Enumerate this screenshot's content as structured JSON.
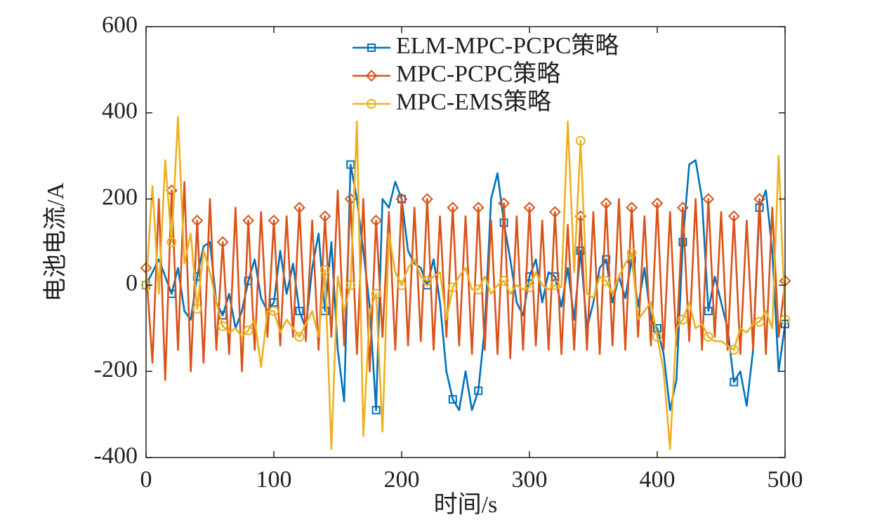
{
  "chart_data": {
    "type": "line",
    "xlabel": "时间/s",
    "ylabel": "电池电流/A",
    "xlim": [
      0,
      500
    ],
    "ylim": [
      -400,
      600
    ],
    "xticks": [
      0,
      100,
      200,
      300,
      400,
      500
    ],
    "yticks": [
      -400,
      -200,
      0,
      200,
      400,
      600
    ],
    "x": [
      0,
      5,
      10,
      15,
      20,
      25,
      30,
      35,
      40,
      45,
      50,
      55,
      60,
      65,
      70,
      75,
      80,
      85,
      90,
      95,
      100,
      105,
      110,
      115,
      120,
      125,
      130,
      135,
      140,
      145,
      150,
      155,
      160,
      165,
      170,
      175,
      180,
      185,
      190,
      195,
      200,
      205,
      210,
      215,
      220,
      225,
      230,
      235,
      240,
      245,
      250,
      255,
      260,
      265,
      270,
      275,
      280,
      285,
      290,
      295,
      300,
      305,
      310,
      315,
      320,
      325,
      330,
      335,
      340,
      345,
      350,
      355,
      360,
      365,
      370,
      375,
      380,
      385,
      390,
      395,
      400,
      405,
      410,
      415,
      420,
      425,
      430,
      435,
      440,
      445,
      450,
      455,
      460,
      465,
      470,
      475,
      480,
      485,
      490,
      495,
      500
    ],
    "series": [
      {
        "name": "ELM-MPC-PCPC策略",
        "color": "#0072bd",
        "marker": "square",
        "values": [
          0,
          30,
          60,
          20,
          -20,
          40,
          -60,
          -80,
          20,
          90,
          100,
          -40,
          -70,
          -20,
          -100,
          -60,
          10,
          60,
          -30,
          -60,
          -40,
          80,
          -20,
          50,
          -60,
          -100,
          40,
          120,
          -60,
          100,
          -150,
          -270,
          280,
          200,
          80,
          -50,
          -290,
          200,
          180,
          240,
          200,
          80,
          50,
          40,
          0,
          60,
          -40,
          -200,
          -265,
          -290,
          -200,
          -290,
          -245,
          -100,
          200,
          260,
          145,
          60,
          -40,
          -70,
          20,
          60,
          -40,
          30,
          20,
          -50,
          40,
          -80,
          80,
          -100,
          -40,
          40,
          60,
          -40,
          20,
          -30,
          60,
          -50,
          40,
          -80,
          -100,
          -160,
          -290,
          -220,
          100,
          280,
          290,
          200,
          -60,
          20,
          -40,
          -100,
          -225,
          -200,
          -280,
          -150,
          180,
          220,
          80,
          -200,
          -90
        ]
      },
      {
        "name": "MPC-PCPC策略",
        "color": "#d95319",
        "marker": "diamond",
        "values": [
          40,
          -180,
          200,
          -220,
          220,
          -150,
          240,
          -200,
          150,
          -180,
          200,
          -150,
          100,
          -160,
          180,
          -200,
          150,
          -150,
          170,
          -120,
          150,
          -140,
          160,
          -120,
          180,
          -130,
          150,
          -150,
          160,
          -120,
          220,
          -140,
          200,
          -160,
          200,
          -200,
          150,
          -120,
          170,
          -150,
          200,
          -140,
          180,
          -130,
          200,
          -150,
          160,
          -120,
          180,
          -140,
          160,
          -160,
          180,
          -150,
          150,
          -160,
          190,
          -170,
          160,
          -150,
          180,
          -140,
          150,
          -150,
          170,
          -160,
          140,
          -150,
          160,
          -150,
          170,
          -160,
          190,
          -140,
          200,
          -150,
          180,
          -120,
          160,
          -140,
          190,
          -150,
          170,
          -140,
          180,
          -130,
          200,
          -150,
          200,
          -120,
          170,
          -150,
          160,
          -160,
          150,
          -150,
          200,
          -160,
          180,
          -120,
          10
        ]
      },
      {
        "name": "MPC-EMS策略",
        "color": "#edb120",
        "marker": "circle",
        "values": [
          0,
          230,
          -20,
          290,
          100,
          390,
          50,
          120,
          -55,
          80,
          30,
          -40,
          -95,
          -110,
          -100,
          -120,
          -105,
          -80,
          -190,
          -60,
          -60,
          -110,
          -80,
          -100,
          -120,
          -90,
          -60,
          -120,
          35,
          -380,
          20,
          -60,
          0,
          380,
          -350,
          -60,
          -20,
          -340,
          120,
          30,
          0,
          40,
          60,
          20,
          10,
          20,
          30,
          -80,
          -5,
          20,
          40,
          -10,
          -10,
          20,
          -20,
          0,
          10,
          -20,
          0,
          -10,
          -5,
          30,
          0,
          -10,
          0,
          -5,
          380,
          30,
          335,
          -20,
          -30,
          20,
          10,
          -20,
          20,
          50,
          75,
          -80,
          -60,
          -40,
          -120,
          -200,
          -380,
          -100,
          -80,
          -40,
          -100,
          -90,
          -120,
          -130,
          -130,
          -140,
          -150,
          -100,
          -110,
          -90,
          -85,
          -60,
          -100,
          300,
          -80
        ]
      }
    ]
  }
}
